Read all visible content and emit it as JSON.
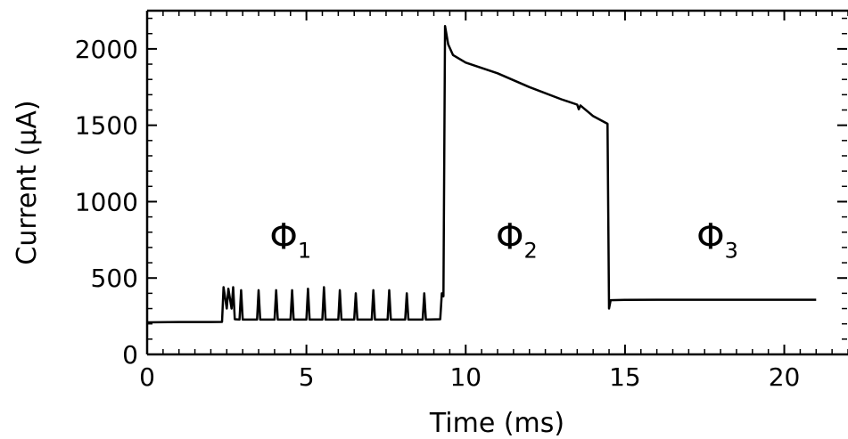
{
  "chart_data": {
    "type": "line",
    "title": "",
    "xlabel": "Time (ms)",
    "ylabel": "Current (μA)",
    "xlim": [
      0,
      22
    ],
    "ylim": [
      0,
      2250
    ],
    "xticks": [
      0,
      5,
      10,
      15,
      20
    ],
    "yticks": [
      0,
      500,
      1000,
      1500,
      2000
    ],
    "xtick_labels": [
      "0",
      "5",
      "10",
      "15",
      "20"
    ],
    "ytick_labels": [
      "0",
      "500",
      "1000",
      "1500",
      "2000"
    ],
    "minor_x_step": 0.5,
    "minor_y_step": 100,
    "grid": false,
    "line_color": "#000000",
    "series": [
      {
        "values": [
          [
            0.0,
            210
          ],
          [
            1.0,
            212
          ],
          [
            2.0,
            212
          ],
          [
            2.35,
            213
          ],
          [
            2.4,
            440
          ],
          [
            2.5,
            300
          ],
          [
            2.55,
            430
          ],
          [
            2.65,
            300
          ],
          [
            2.7,
            440
          ],
          [
            2.75,
            230
          ],
          [
            2.9,
            228
          ],
          [
            2.95,
            420
          ],
          [
            3.0,
            228
          ],
          [
            3.45,
            228
          ],
          [
            3.5,
            420
          ],
          [
            3.55,
            228
          ],
          [
            4.0,
            228
          ],
          [
            4.05,
            420
          ],
          [
            4.1,
            228
          ],
          [
            4.5,
            228
          ],
          [
            4.55,
            420
          ],
          [
            4.6,
            228
          ],
          [
            5.0,
            228
          ],
          [
            5.05,
            430
          ],
          [
            5.1,
            228
          ],
          [
            5.5,
            228
          ],
          [
            5.55,
            440
          ],
          [
            5.6,
            228
          ],
          [
            6.0,
            228
          ],
          [
            6.05,
            420
          ],
          [
            6.1,
            228
          ],
          [
            6.5,
            228
          ],
          [
            6.55,
            400
          ],
          [
            6.6,
            228
          ],
          [
            7.05,
            228
          ],
          [
            7.1,
            420
          ],
          [
            7.15,
            228
          ],
          [
            7.55,
            228
          ],
          [
            7.6,
            420
          ],
          [
            7.65,
            228
          ],
          [
            8.1,
            228
          ],
          [
            8.15,
            400
          ],
          [
            8.2,
            228
          ],
          [
            8.65,
            228
          ],
          [
            8.7,
            400
          ],
          [
            8.75,
            228
          ],
          [
            9.2,
            230
          ],
          [
            9.25,
            400
          ],
          [
            9.3,
            380
          ],
          [
            9.35,
            2150
          ],
          [
            9.45,
            2030
          ],
          [
            9.6,
            1960
          ],
          [
            10.0,
            1910
          ],
          [
            11.0,
            1840
          ],
          [
            12.0,
            1750
          ],
          [
            13.0,
            1670
          ],
          [
            13.5,
            1635
          ],
          [
            13.55,
            1605
          ],
          [
            13.6,
            1630
          ],
          [
            14.0,
            1560
          ],
          [
            14.45,
            1510
          ],
          [
            14.5,
            300
          ],
          [
            14.55,
            355
          ],
          [
            15.0,
            357
          ],
          [
            16.0,
            358
          ],
          [
            18.0,
            358
          ],
          [
            20.0,
            358
          ],
          [
            21.0,
            358
          ]
        ]
      }
    ],
    "annotations": [
      {
        "symbol": "Φ",
        "subscript": "1",
        "x": 4.5,
        "y": 760
      },
      {
        "symbol": "Φ",
        "subscript": "2",
        "x": 11.6,
        "y": 760
      },
      {
        "symbol": "Φ",
        "subscript": "3",
        "x": 17.9,
        "y": 760
      }
    ]
  }
}
